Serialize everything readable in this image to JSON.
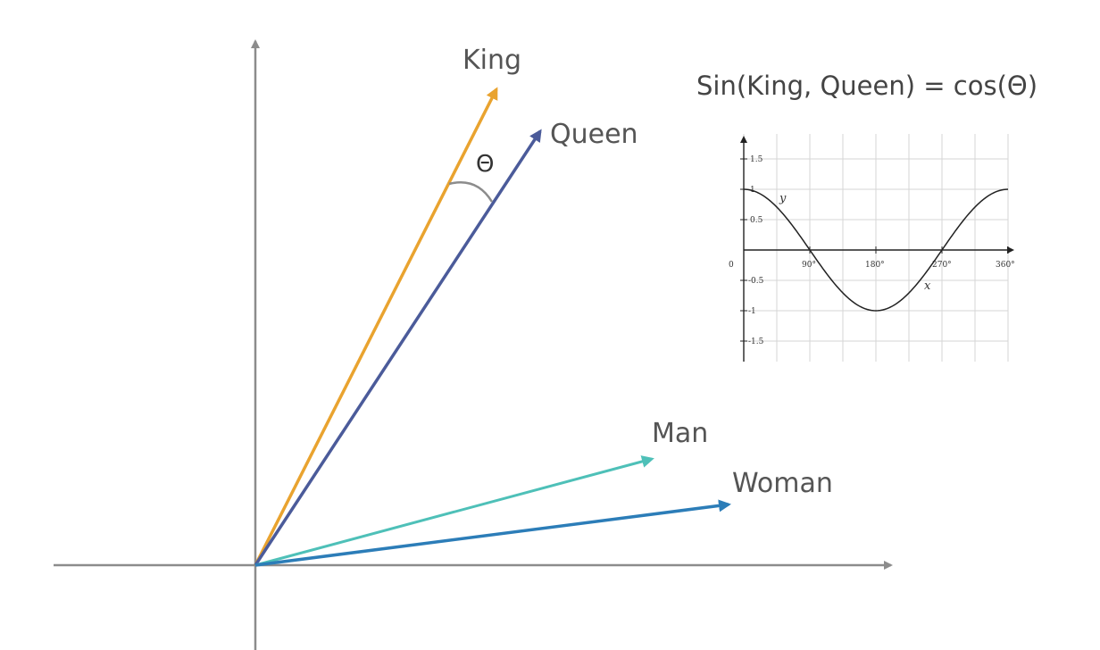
{
  "formula": "Sin(King, Queen) = cos(Θ)",
  "angle_label": "Θ",
  "vectors": [
    {
      "label": "King",
      "color": "#E9A32F"
    },
    {
      "label": "Queen",
      "color": "#4B5B9A"
    },
    {
      "label": "Man",
      "color": "#4EC0B8"
    },
    {
      "label": "Woman",
      "color": "#2C7DB8"
    }
  ],
  "inset_graph": {
    "function": "cos",
    "x_ticks": [
      "90°",
      "180°",
      "270°",
      "360°"
    ],
    "y_ticks": [
      "1.5",
      "1",
      "0.5",
      "-0.5",
      "-1",
      "-1.5"
    ],
    "x_label": "x",
    "y_label": "y",
    "origin_label": "0"
  },
  "colors": {
    "axes": "#8C8C8C",
    "grid": "#D6D6D6",
    "curve": "#222222"
  }
}
